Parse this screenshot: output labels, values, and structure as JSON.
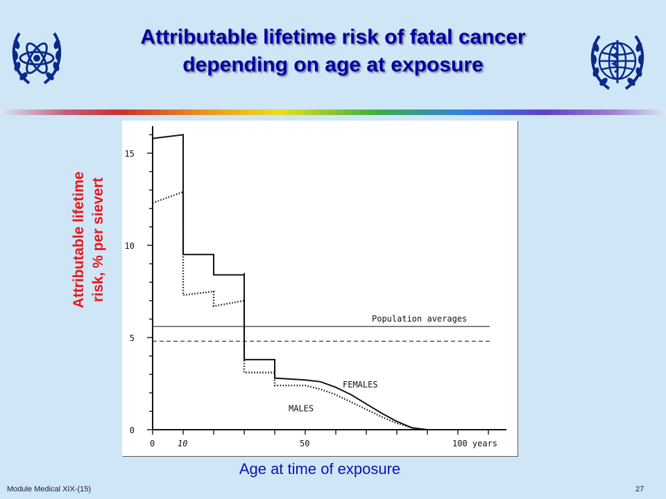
{
  "slide": {
    "title_line1": "Attributable lifetime risk of fatal cancer",
    "title_line2": "depending on  age at exposure",
    "footer_left": "Module Medical XIX-(15)",
    "footer_right": "27",
    "xlabel": "Age at time of exposure",
    "ylabel_line1": "Attributable lifetime",
    "ylabel_line2": "risk, % per sievert"
  },
  "logos": {
    "left": "atom-wreath-icon",
    "right": "globe-wreath-icon"
  },
  "colors": {
    "title": "#0000a0",
    "background": "#cfe6f7",
    "ylabel": "#e8181c",
    "xlabel": "#1010b0"
  },
  "chart_data": {
    "type": "line",
    "xlabel": "",
    "ylabel": "",
    "xlim": [
      0,
      115
    ],
    "ylim": [
      0,
      17
    ],
    "x_ticks": [
      {
        "value": 0,
        "label": "0"
      },
      {
        "value": 10,
        "label": "10"
      },
      {
        "value": 50,
        "label": "50"
      },
      {
        "value": 100,
        "label": "100 years"
      }
    ],
    "y_ticks": [
      {
        "value": 0,
        "label": "0"
      },
      {
        "value": 5,
        "label": "5"
      },
      {
        "value": 10,
        "label": "10"
      },
      {
        "value": 15,
        "label": "15"
      }
    ],
    "series": [
      {
        "name": "FEMALES",
        "style": "solid",
        "points": [
          [
            0,
            15.8
          ],
          [
            10,
            16.0
          ],
          [
            10,
            9.5
          ],
          [
            20,
            9.5
          ],
          [
            20,
            8.4
          ],
          [
            30,
            8.4
          ],
          [
            30,
            8.5
          ],
          [
            30,
            3.8
          ],
          [
            40,
            3.8
          ],
          [
            40,
            2.8
          ],
          [
            50,
            2.7
          ],
          [
            55,
            2.6
          ],
          [
            60,
            2.3
          ],
          [
            65,
            1.9
          ],
          [
            70,
            1.4
          ],
          [
            75,
            0.9
          ],
          [
            80,
            0.45
          ],
          [
            85,
            0.1
          ],
          [
            90,
            0.0
          ],
          [
            110,
            0.0
          ]
        ]
      },
      {
        "name": "MALES",
        "style": "dotted",
        "points": [
          [
            0,
            12.3
          ],
          [
            10,
            12.9
          ],
          [
            10,
            7.3
          ],
          [
            20,
            7.5
          ],
          [
            20,
            6.7
          ],
          [
            30,
            7.0
          ],
          [
            30,
            3.1
          ],
          [
            40,
            3.1
          ],
          [
            40,
            2.4
          ],
          [
            50,
            2.4
          ],
          [
            55,
            2.2
          ],
          [
            60,
            1.9
          ],
          [
            65,
            1.5
          ],
          [
            70,
            1.1
          ],
          [
            75,
            0.7
          ],
          [
            80,
            0.35
          ],
          [
            85,
            0.1
          ],
          [
            88,
            0.0
          ]
        ]
      }
    ],
    "reference_lines": [
      {
        "label": "Population averages",
        "value": 5.6,
        "style": "solid"
      },
      {
        "label": "",
        "value": 4.8,
        "style": "dashed"
      }
    ],
    "annotations": [
      "Population averages",
      "FEMALES",
      "MALES"
    ],
    "grid": false
  }
}
